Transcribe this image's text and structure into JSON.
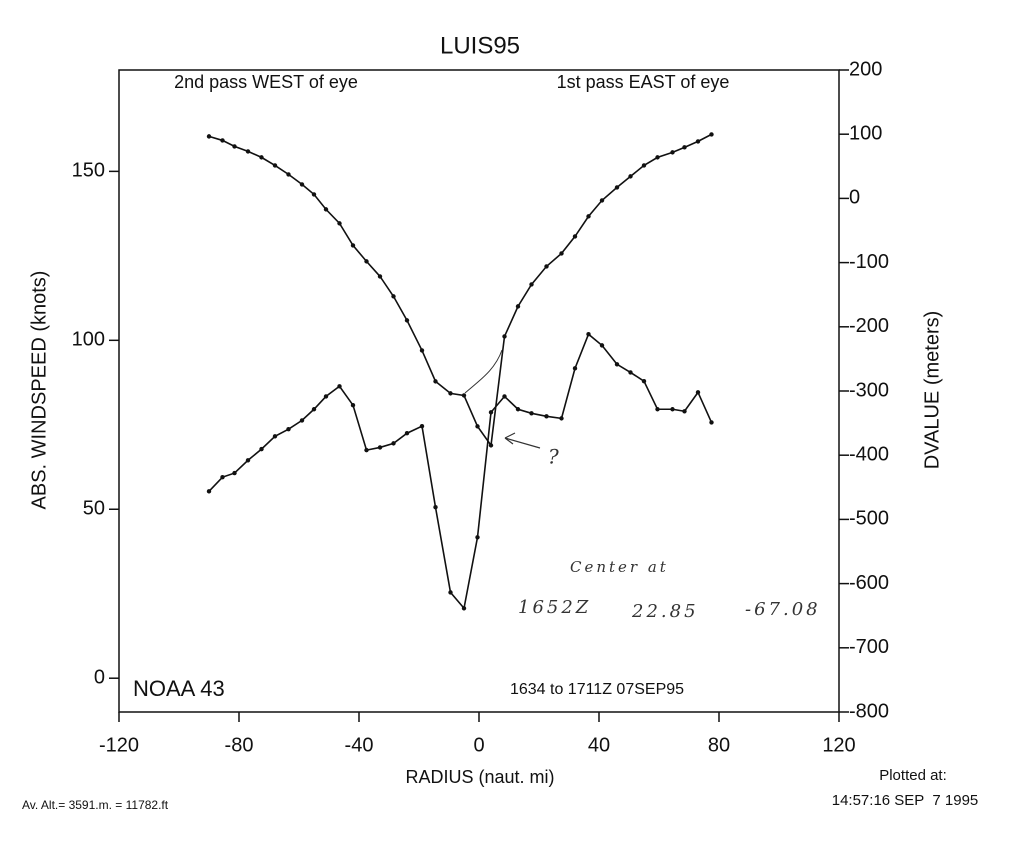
{
  "chart_data": {
    "type": "line",
    "title": "LUIS95",
    "subtitle_left": "2nd pass WEST of eye",
    "subtitle_right": "1st pass EAST of eye",
    "aircraft": "NOAA 43",
    "time_range": "1634 to 1711Z 07SEP95",
    "x_label": "RADIUS (naut. mi)",
    "y_label": "ABS. WINDSPEED (knots)",
    "y2_label": "DVALUE (meters)",
    "altitude_note": "Av. Alt.= 3591.m. = 11782.ft",
    "plotted_label": "Plotted at:",
    "plotted_time": "14:57:16 SEP  7 1995",
    "annotations": [
      "Center at",
      "1652Z",
      "22.85",
      "-67.08",
      "?"
    ],
    "xlim": [
      -120,
      120
    ],
    "xticks": [
      -120,
      -80,
      -40,
      0,
      40,
      80,
      120
    ],
    "ylim": [
      -10,
      180
    ],
    "yticks": [
      0,
      50,
      100,
      150
    ],
    "y2lim": [
      -800,
      200
    ],
    "y2ticks": [
      200,
      100,
      0,
      -100,
      -200,
      -300,
      -400,
      -500,
      -600,
      -700,
      -800
    ],
    "x": [
      -90,
      -85.5,
      -81.5,
      -77,
      -72.5,
      -68,
      -63.5,
      -59,
      -55,
      -51,
      -46.5,
      -42,
      -37.5,
      -33,
      -28.5,
      -24,
      -19,
      -14.5,
      -9.5,
      -5,
      -0.5,
      4,
      8.5,
      13,
      17.5,
      22.5,
      27.5,
      32,
      36.5,
      41,
      46,
      50.5,
      55,
      59.5,
      64.5,
      68.5,
      73,
      77.5
    ],
    "series": [
      {
        "name": "ABS. WINDSPEED",
        "color": "#111111",
        "values": [
          55.3,
          59.5,
          60.7,
          64.5,
          67.8,
          71.6,
          73.7,
          76.3,
          79.6,
          83.4,
          86.4,
          80.8,
          67.5,
          68.3,
          69.5,
          72.5,
          74.6,
          50.6,
          25.4,
          20.7,
          41.7,
          78.7,
          83.4,
          79.6,
          78.4,
          77.5,
          76.9,
          91.7,
          101.8,
          98.5,
          92.9,
          90.5,
          87.9,
          79.6,
          79.6,
          79,
          84.6,
          75.7
        ]
      },
      {
        "name": "DVALUE",
        "color": "#111111",
        "axis": "y2",
        "values": [
          96.6,
          90.3,
          81,
          73.2,
          63.9,
          51.4,
          37.4,
          21.8,
          6.2,
          -17.1,
          -38.9,
          -73.2,
          -98.1,
          -121.5,
          -152.6,
          -190,
          -236.8,
          -285,
          -303.7,
          -306.9,
          -355.1,
          -384.7,
          -215,
          -168.2,
          -134,
          -105.9,
          -85.7,
          -59.2,
          -28,
          -3.1,
          17.1,
          34.3,
          51.4,
          63.9,
          71.7,
          79.5,
          88.8,
          99.7
        ]
      }
    ]
  }
}
